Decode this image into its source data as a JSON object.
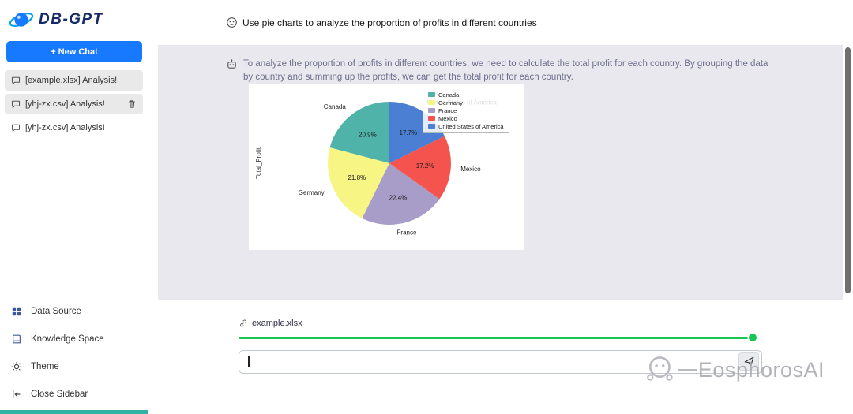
{
  "sidebar": {
    "logo_text": "DB-GPT",
    "new_chat_label": "+ New Chat",
    "chats": [
      {
        "label": "[example.xlsx] Analysis!",
        "selected": true
      },
      {
        "label": "[yhj-zx.csv] Analysis!",
        "selected": true,
        "deletable": true
      },
      {
        "label": "[yhj-zx.csv] Analysis!",
        "selected": false
      }
    ],
    "footer_items": [
      {
        "label": "Data Source"
      },
      {
        "label": "Knowledge Space"
      },
      {
        "label": "Theme"
      },
      {
        "label": "Close Sidebar"
      }
    ]
  },
  "chat": {
    "user_message": "Use pie charts to analyze the proportion of profits in different countries",
    "assistant_message": "To analyze the proportion of profits in different countries, we need to calculate the total profit for each country. By grouping the data by country and summing up the profits, we can get the total profit for each country."
  },
  "chart_data": {
    "type": "pie",
    "title": "",
    "ylabel": "Total_Profit",
    "labels": [
      "Canada",
      "Germany",
      "France",
      "Mexico",
      "United States of America"
    ],
    "values": [
      20.9,
      21.8,
      22.4,
      17.2,
      17.7
    ],
    "unit": "%",
    "colors": [
      "#4fb3a9",
      "#f7f584",
      "#a89cc8",
      "#f4544d",
      "#4a7fd4"
    ],
    "start_angle": 90,
    "direction": "counterclockwise",
    "legend_position": "upper right"
  },
  "composer": {
    "attachment_name": "example.xlsx",
    "input_value": "",
    "progress_percent": 100
  },
  "watermark": {
    "text": "EosphorosAI"
  },
  "colors": {
    "accent": "#1779ff",
    "progress": "#17c653",
    "strip": "#2fb3a3",
    "panel_bg": "#e8e8ee",
    "assistant_text": "#6d6d8c"
  }
}
